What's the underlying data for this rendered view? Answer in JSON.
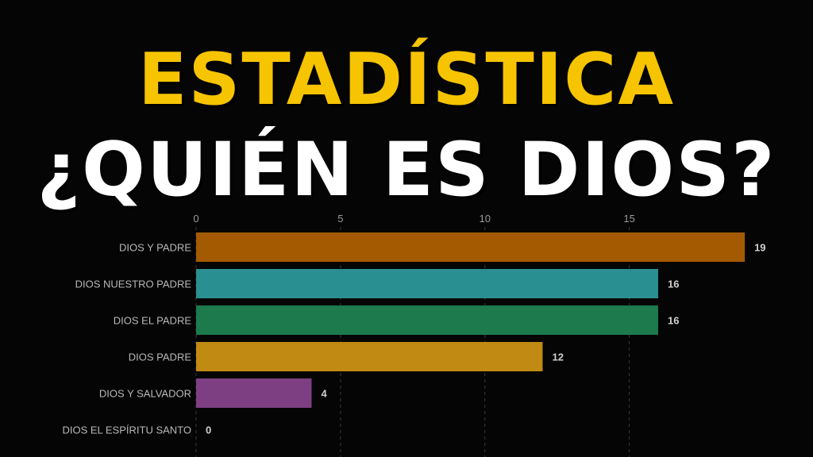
{
  "header": {
    "title_line1": "ESTADÍSTICA",
    "title_line2": "¿QUIÉN ES DIOS?"
  },
  "chart_data": {
    "type": "bar",
    "orientation": "horizontal",
    "title": "ESTADÍSTICA ¿QUIÉN ES DIOS?",
    "categories": [
      "DIOS Y PADRE",
      "DIOS NUESTRO PADRE",
      "DIOS EL PADRE",
      "DIOS PADRE",
      "DIOS Y SALVADOR",
      "DIOS EL ESPÍRITU SANTO"
    ],
    "values": [
      19,
      16,
      16,
      12,
      4,
      0
    ],
    "value_labels": [
      "19",
      "16",
      "16",
      "12",
      "4",
      "0"
    ],
    "colors": [
      "#a35a00",
      "#2a8f90",
      "#1d7a4c",
      "#c08a13",
      "#7d3f82",
      "#888888"
    ],
    "x_ticks": [
      0,
      5,
      10,
      15
    ],
    "xlim": [
      0,
      19.3
    ],
    "xlabel": "",
    "ylabel": "",
    "grid": "vertical dashed",
    "axis_position": "top"
  }
}
